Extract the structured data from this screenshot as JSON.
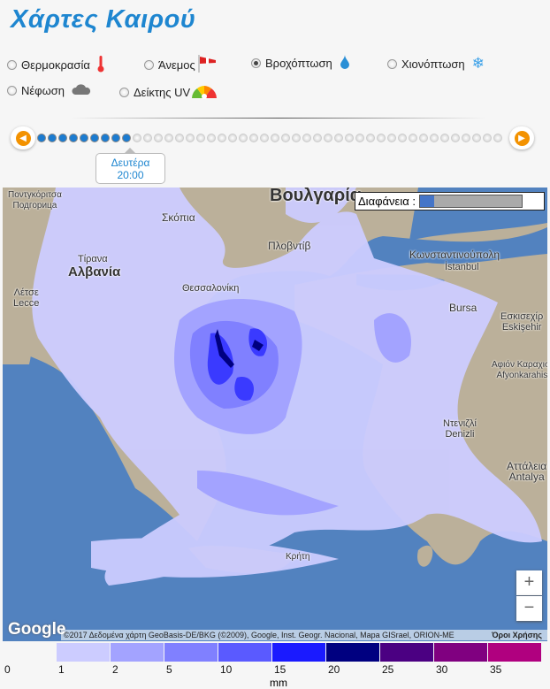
{
  "title": "Χάρτες Καιρού",
  "options": [
    {
      "label": "Θερμοκρασία",
      "icon": "thermometer-icon",
      "selected": false
    },
    {
      "label": "Άνεμος",
      "icon": "windsock-icon",
      "selected": false
    },
    {
      "label": "Βροχόπτωση",
      "icon": "raindrop-icon",
      "selected": true
    },
    {
      "label": "Χιονόπτωση",
      "icon": "snowflake-icon",
      "selected": false
    },
    {
      "label": "Νέφωση",
      "icon": "cloud-icon",
      "selected": false
    },
    {
      "label": "Δείκτης UV",
      "icon": "uv-gauge-icon",
      "selected": false
    }
  ],
  "timeline": {
    "day": "Δευτέρα",
    "time": "20:00",
    "total_steps": 44,
    "current_step": 9
  },
  "map": {
    "opacity_label": "Διαφάνεια :",
    "opacity_value": 0.1,
    "zoom_in": "+",
    "zoom_out": "−",
    "logo": "Google",
    "attribution": "©2017 Δεδομένα χάρτη GeoBasis-DE/BKG (©2009), Google, Inst. Geogr. Nacional, Mapa GISrael, ORION-ME",
    "terms": "Όροι Χρήσης",
    "labels": [
      "Ποντγκόριτσα",
      "Подгорица",
      "Βουλγαρία",
      "Σκόπια",
      "Πλοβντίβ",
      "Τίρανα",
      "Αλβανία",
      "Λέτσε",
      "Lecce",
      "Θεσσαλονίκη",
      "Κωνσταντινούπολη",
      "İstanbul",
      "Bursa",
      "Εσκισεχίρ",
      "Eskişehir",
      "Αφιόν Καραχισάρ",
      "Afyonkarahisar",
      "Ντενιζλί",
      "Denizli",
      "Αττάλεια",
      "Antalya",
      "Κρήτη"
    ]
  },
  "legend": {
    "unit": "mm",
    "ticks": [
      "0",
      "1",
      "2",
      "5",
      "10",
      "15",
      "20",
      "25",
      "30",
      "35"
    ],
    "colors": [
      "#ccccff",
      "#a3a3ff",
      "#8080ff",
      "#5a5aff",
      "#1a1aff",
      "#000080",
      "#4b0082",
      "#800080",
      "#b0007f"
    ]
  }
}
